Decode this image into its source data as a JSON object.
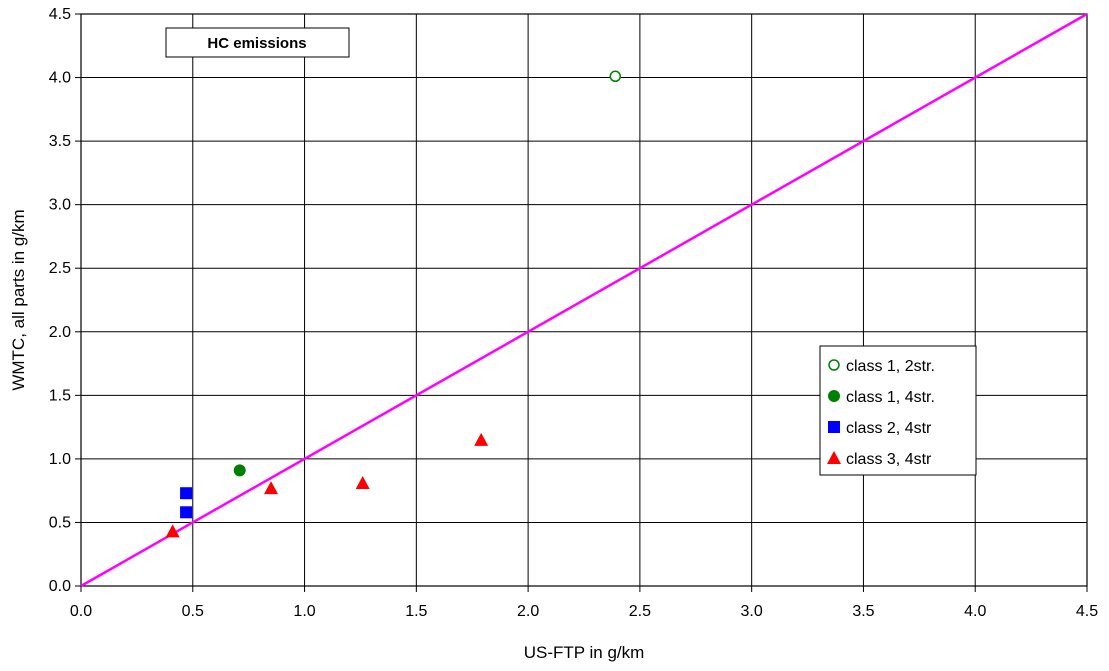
{
  "chart_data": {
    "type": "scatter",
    "title": "HC emissions",
    "xlabel": "US-FTP in g/km",
    "ylabel": "WMTC, all parts in g/km",
    "xlim": [
      0,
      4.5
    ],
    "ylim": [
      0,
      4.5
    ],
    "xticks": [
      "0.0",
      "0.5",
      "1.0",
      "1.5",
      "2.0",
      "2.5",
      "3.0",
      "3.5",
      "4.0",
      "4.5"
    ],
    "yticks": [
      "0.0",
      "0.5",
      "1.0",
      "1.5",
      "2.0",
      "2.5",
      "3.0",
      "3.5",
      "4.0",
      "4.5"
    ],
    "grid": true,
    "legend_position": "right",
    "reference_line": {
      "x": [
        0,
        4.5
      ],
      "y": [
        0,
        4.5
      ],
      "color": "#ff00ff"
    },
    "series": [
      {
        "name": "class 1, 2str.",
        "marker": "circle-open",
        "color": "#008000",
        "points": [
          [
            2.39,
            4.01
          ]
        ]
      },
      {
        "name": "class 1, 4str.",
        "marker": "circle",
        "color": "#008000",
        "points": [
          [
            0.71,
            0.91
          ]
        ]
      },
      {
        "name": "class 2, 4str",
        "marker": "square",
        "color": "#0000ff",
        "points": [
          [
            0.47,
            0.73
          ],
          [
            0.47,
            0.58
          ]
        ]
      },
      {
        "name": "class 3, 4str",
        "marker": "triangle",
        "color": "#ff0000",
        "points": [
          [
            0.41,
            0.43
          ],
          [
            0.85,
            0.77
          ],
          [
            1.26,
            0.81
          ],
          [
            1.79,
            1.15
          ]
        ]
      }
    ]
  }
}
